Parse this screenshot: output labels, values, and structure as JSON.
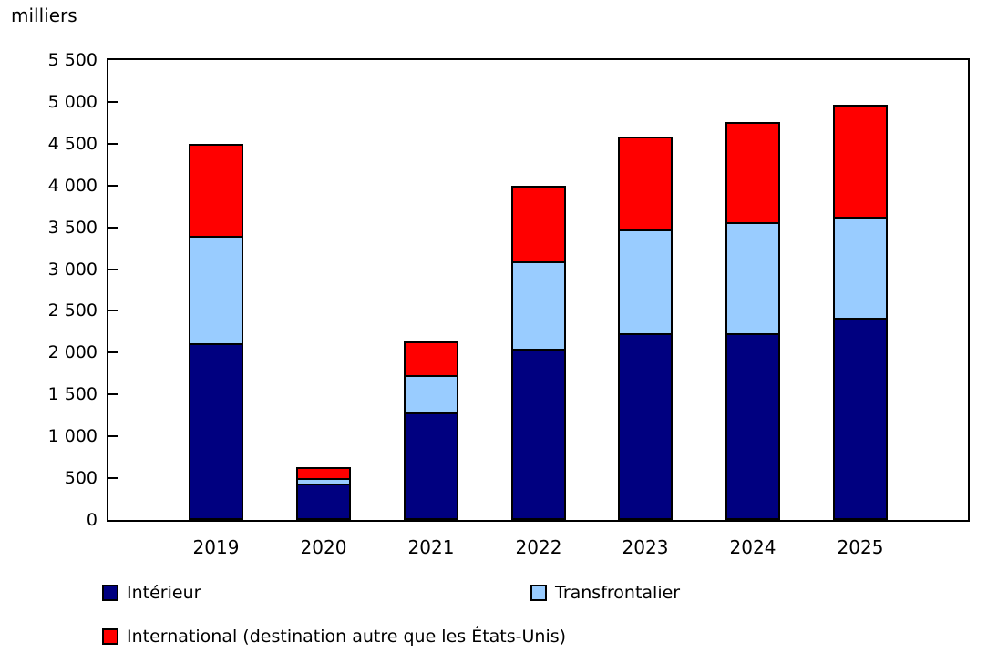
{
  "page": {
    "background_color": "#ffffff",
    "text_color": "#000000"
  },
  "chart_data": {
    "type": "bar",
    "stacked": true,
    "y_axis_title": "milliers",
    "categories": [
      "2019",
      "2020",
      "2021",
      "2022",
      "2023",
      "2024",
      "2025"
    ],
    "series": [
      {
        "name": "Intérieur",
        "color": "#000080",
        "values": [
          2115,
          435,
          1285,
          2045,
          2230,
          2230,
          2420
        ]
      },
      {
        "name": "Transfrontalier",
        "color": "#99CCFF",
        "values": [
          1285,
          65,
          445,
          1050,
          1245,
          1325,
          1205
        ]
      },
      {
        "name": "International (destination autre que les États-Unis)",
        "color": "#FF0000",
        "values": [
          1105,
          128,
          405,
          905,
          1110,
          1200,
          1340
        ]
      }
    ],
    "totals": [
      4505,
      628,
      2135,
      4000,
      4585,
      4755,
      4965
    ],
    "ylim": [
      0,
      5500
    ],
    "y_tick_step": 500,
    "y_tick_labels": [
      "0",
      "500",
      "1 000",
      "1 500",
      "2 000",
      "2 500",
      "3 000",
      "3 500",
      "4 000",
      "4 500",
      "5 000",
      "5 500"
    ],
    "grid": false,
    "legend_position": "bottom-left",
    "bar_border_color": "#000000",
    "axis_color": "#000000"
  }
}
